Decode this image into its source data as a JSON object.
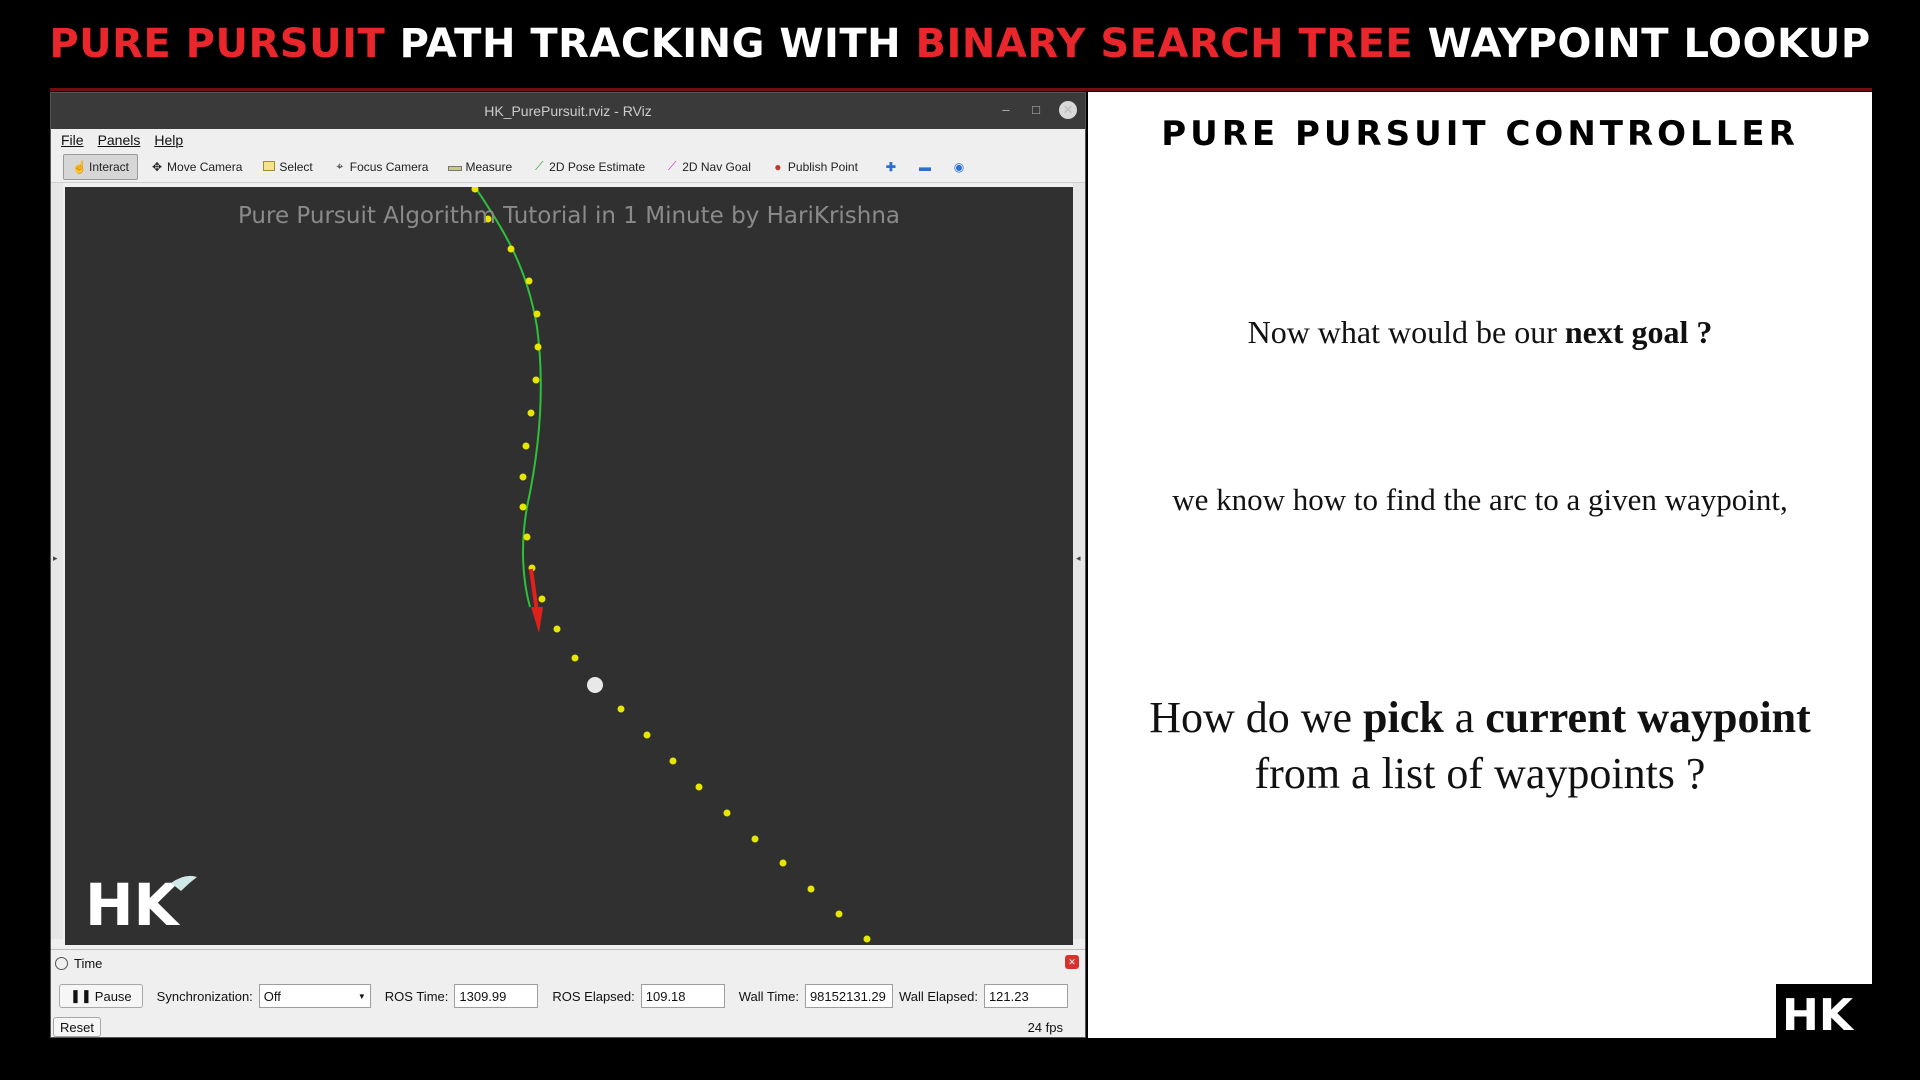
{
  "banner": {
    "part1": "PURE PURSUIT",
    "part2": " PATH TRACKING WITH ",
    "part3": "BINARY SEARCH TREE",
    "part4": " WAYPOINT LOOKUP"
  },
  "window": {
    "title": "HK_PurePursuit.rviz - RViz",
    "min_glyph": "–",
    "max_glyph": "□",
    "close_glyph": "✕"
  },
  "menu": [
    "File",
    "Panels",
    "Help"
  ],
  "toolbar": {
    "interact": "Interact",
    "move_camera": "Move Camera",
    "select": "Select",
    "focus_camera": "Focus Camera",
    "measure": "Measure",
    "pose_estimate": "2D Pose Estimate",
    "nav_goal": "2D Nav Goal",
    "publish_point": "Publish Point"
  },
  "viewport": {
    "overlay_title": "Pure Pursuit Algorithm Tutorial in 1 Minute by HariKrishna",
    "logo_text": "HK"
  },
  "time_panel": {
    "title": "Time",
    "pause_label": "Pause",
    "sync_label": "Synchronization:",
    "sync_value": "Off",
    "ros_time_label": "ROS Time:",
    "ros_time_value": "1309.99",
    "ros_elapsed_label": "ROS Elapsed:",
    "ros_elapsed_value": "109.18",
    "wall_time_label": "Wall Time:",
    "wall_time_value": "98152131.29",
    "wall_elapsed_label": "Wall Elapsed:",
    "wall_elapsed_value": "121.23",
    "reset_label": "Reset",
    "fps": "24 fps"
  },
  "slide": {
    "title": "PURE PURSUIT CONTROLLER",
    "line1_a": "Now what would be our ",
    "line1_b": "next goal ?",
    "line2": "we know how to find the arc to a given waypoint,",
    "line3_a": "How do we ",
    "line3_b": "pick",
    "line3_c": " a ",
    "line3_d": "current waypoint",
    "line3_e": "from a list of waypoints ?",
    "logo_text": "HK"
  },
  "colors": {
    "banner_red": "#e8262b",
    "path_green": "#2fbf3a",
    "waypoint_yellow": "#e6e600",
    "arrow_red": "#e0201b"
  }
}
